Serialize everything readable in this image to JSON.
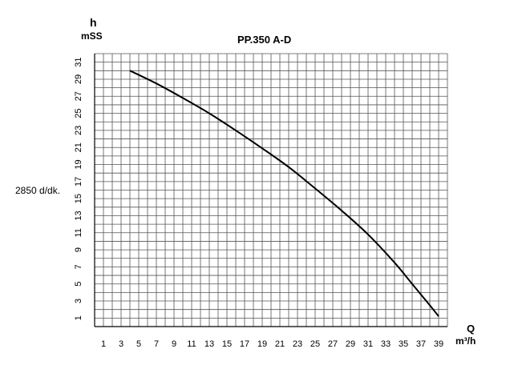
{
  "chart_data": {
    "type": "line",
    "title": "PP.350 A-D",
    "ylabel": "h",
    "yunit": "mSS",
    "xlabel": "Q",
    "xunit": "m³/h",
    "side_note": "2850 d/dk.",
    "x_ticks": [
      1,
      3,
      5,
      7,
      9,
      11,
      13,
      15,
      17,
      19,
      21,
      23,
      25,
      27,
      29,
      31,
      33,
      35,
      37,
      39
    ],
    "y_ticks": [
      1,
      3,
      5,
      7,
      9,
      11,
      13,
      15,
      17,
      19,
      21,
      23,
      25,
      27,
      29,
      31
    ],
    "xlim": [
      0,
      40
    ],
    "ylim": [
      0,
      32
    ],
    "grid": true,
    "series": [
      {
        "x": [
          4,
          7,
          10,
          13,
          16,
          19,
          22,
          25,
          28,
          31,
          34,
          36,
          38,
          39
        ],
        "y": [
          30,
          28.5,
          26.8,
          25,
          23,
          20.9,
          18.7,
          16.2,
          13.6,
          10.8,
          7.5,
          5.0,
          2.5,
          1.2
        ],
        "color": "#000000"
      }
    ]
  }
}
